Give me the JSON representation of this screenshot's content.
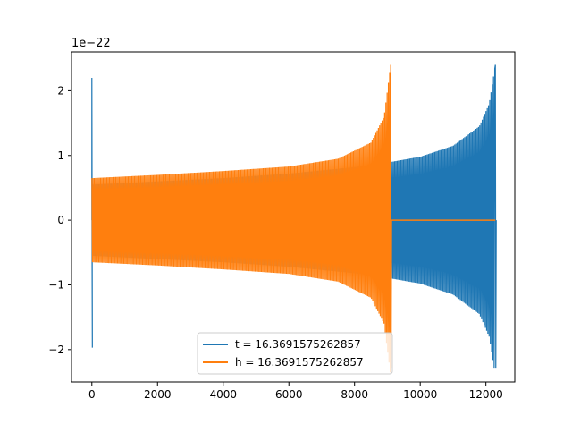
{
  "chart_data": {
    "type": "line",
    "title": "",
    "xlabel": "",
    "ylabel": "",
    "y_offset_label": "1e−22",
    "xlim": [
      -620,
      12880
    ],
    "ylim": [
      -2.5,
      2.6
    ],
    "xticks": [
      0,
      2000,
      4000,
      6000,
      8000,
      10000,
      12000
    ],
    "xtick_labels": [
      "0",
      "2000",
      "4000",
      "6000",
      "8000",
      "10000",
      "12000"
    ],
    "yticks": [
      -2,
      -1,
      0,
      1,
      2
    ],
    "ytick_labels": [
      "−2",
      "−1",
      "0",
      "1",
      "2"
    ],
    "grid": false,
    "legend_position": "lower center",
    "series": [
      {
        "name": "t = 16.3691575262857",
        "color": "#1f77b4",
        "x_start": 0,
        "x_end": 12288,
        "merger_x": 12288,
        "initial_spike": [
          2.2,
          -1.97
        ],
        "envelope": [
          {
            "x": 0,
            "amp": 0.55
          },
          {
            "x": 2000,
            "amp": 0.6
          },
          {
            "x": 4000,
            "amp": 0.65
          },
          {
            "x": 6000,
            "amp": 0.72
          },
          {
            "x": 8000,
            "amp": 0.82
          },
          {
            "x": 9100,
            "amp": 0.9
          },
          {
            "x": 10000,
            "amp": 0.98
          },
          {
            "x": 11000,
            "amp": 1.15
          },
          {
            "x": 11800,
            "amp": 1.45
          },
          {
            "x": 12100,
            "amp": 1.8
          },
          {
            "x": 12288,
            "amp": 2.4
          }
        ]
      },
      {
        "name": "h = 16.3691575262857",
        "color": "#ff7f0e",
        "x_start": 0,
        "x_end": 12288,
        "merger_x": 9100,
        "envelope": [
          {
            "x": 0,
            "amp": 0.65
          },
          {
            "x": 2000,
            "amp": 0.7
          },
          {
            "x": 4000,
            "amp": 0.76
          },
          {
            "x": 6000,
            "amp": 0.83
          },
          {
            "x": 7500,
            "amp": 0.95
          },
          {
            "x": 8500,
            "amp": 1.2
          },
          {
            "x": 8900,
            "amp": 1.6
          },
          {
            "x": 9100,
            "amp": 2.4
          }
        ],
        "tail_value_after_merger": 0.0
      }
    ]
  }
}
